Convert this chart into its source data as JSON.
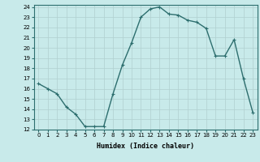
{
  "x": [
    0,
    1,
    2,
    3,
    4,
    5,
    6,
    7,
    8,
    9,
    10,
    11,
    12,
    13,
    14,
    15,
    16,
    17,
    18,
    19,
    20,
    21,
    22,
    23
  ],
  "y": [
    16.5,
    16.0,
    15.5,
    14.2,
    13.5,
    12.3,
    12.3,
    12.3,
    15.5,
    18.3,
    20.5,
    23.0,
    23.8,
    24.0,
    23.3,
    23.2,
    22.7,
    22.5,
    21.9,
    19.2,
    19.2,
    20.8,
    17.0,
    13.7
  ],
  "line_color": "#2d6e6e",
  "marker": "+",
  "bg_color": "#c8eaea",
  "grid_color": "#b0d0d0",
  "xlabel": "Humidex (Indice chaleur)",
  "xlabel_fontsize": 6,
  "xlim": [
    -0.5,
    23.5
  ],
  "ylim": [
    12,
    24.2
  ],
  "yticks": [
    12,
    13,
    14,
    15,
    16,
    17,
    18,
    19,
    20,
    21,
    22,
    23,
    24
  ],
  "xticks": [
    0,
    1,
    2,
    3,
    4,
    5,
    6,
    7,
    8,
    9,
    10,
    11,
    12,
    13,
    14,
    15,
    16,
    17,
    18,
    19,
    20,
    21,
    22,
    23
  ],
  "tick_fontsize": 5,
  "line_width": 1.0,
  "marker_size": 3
}
